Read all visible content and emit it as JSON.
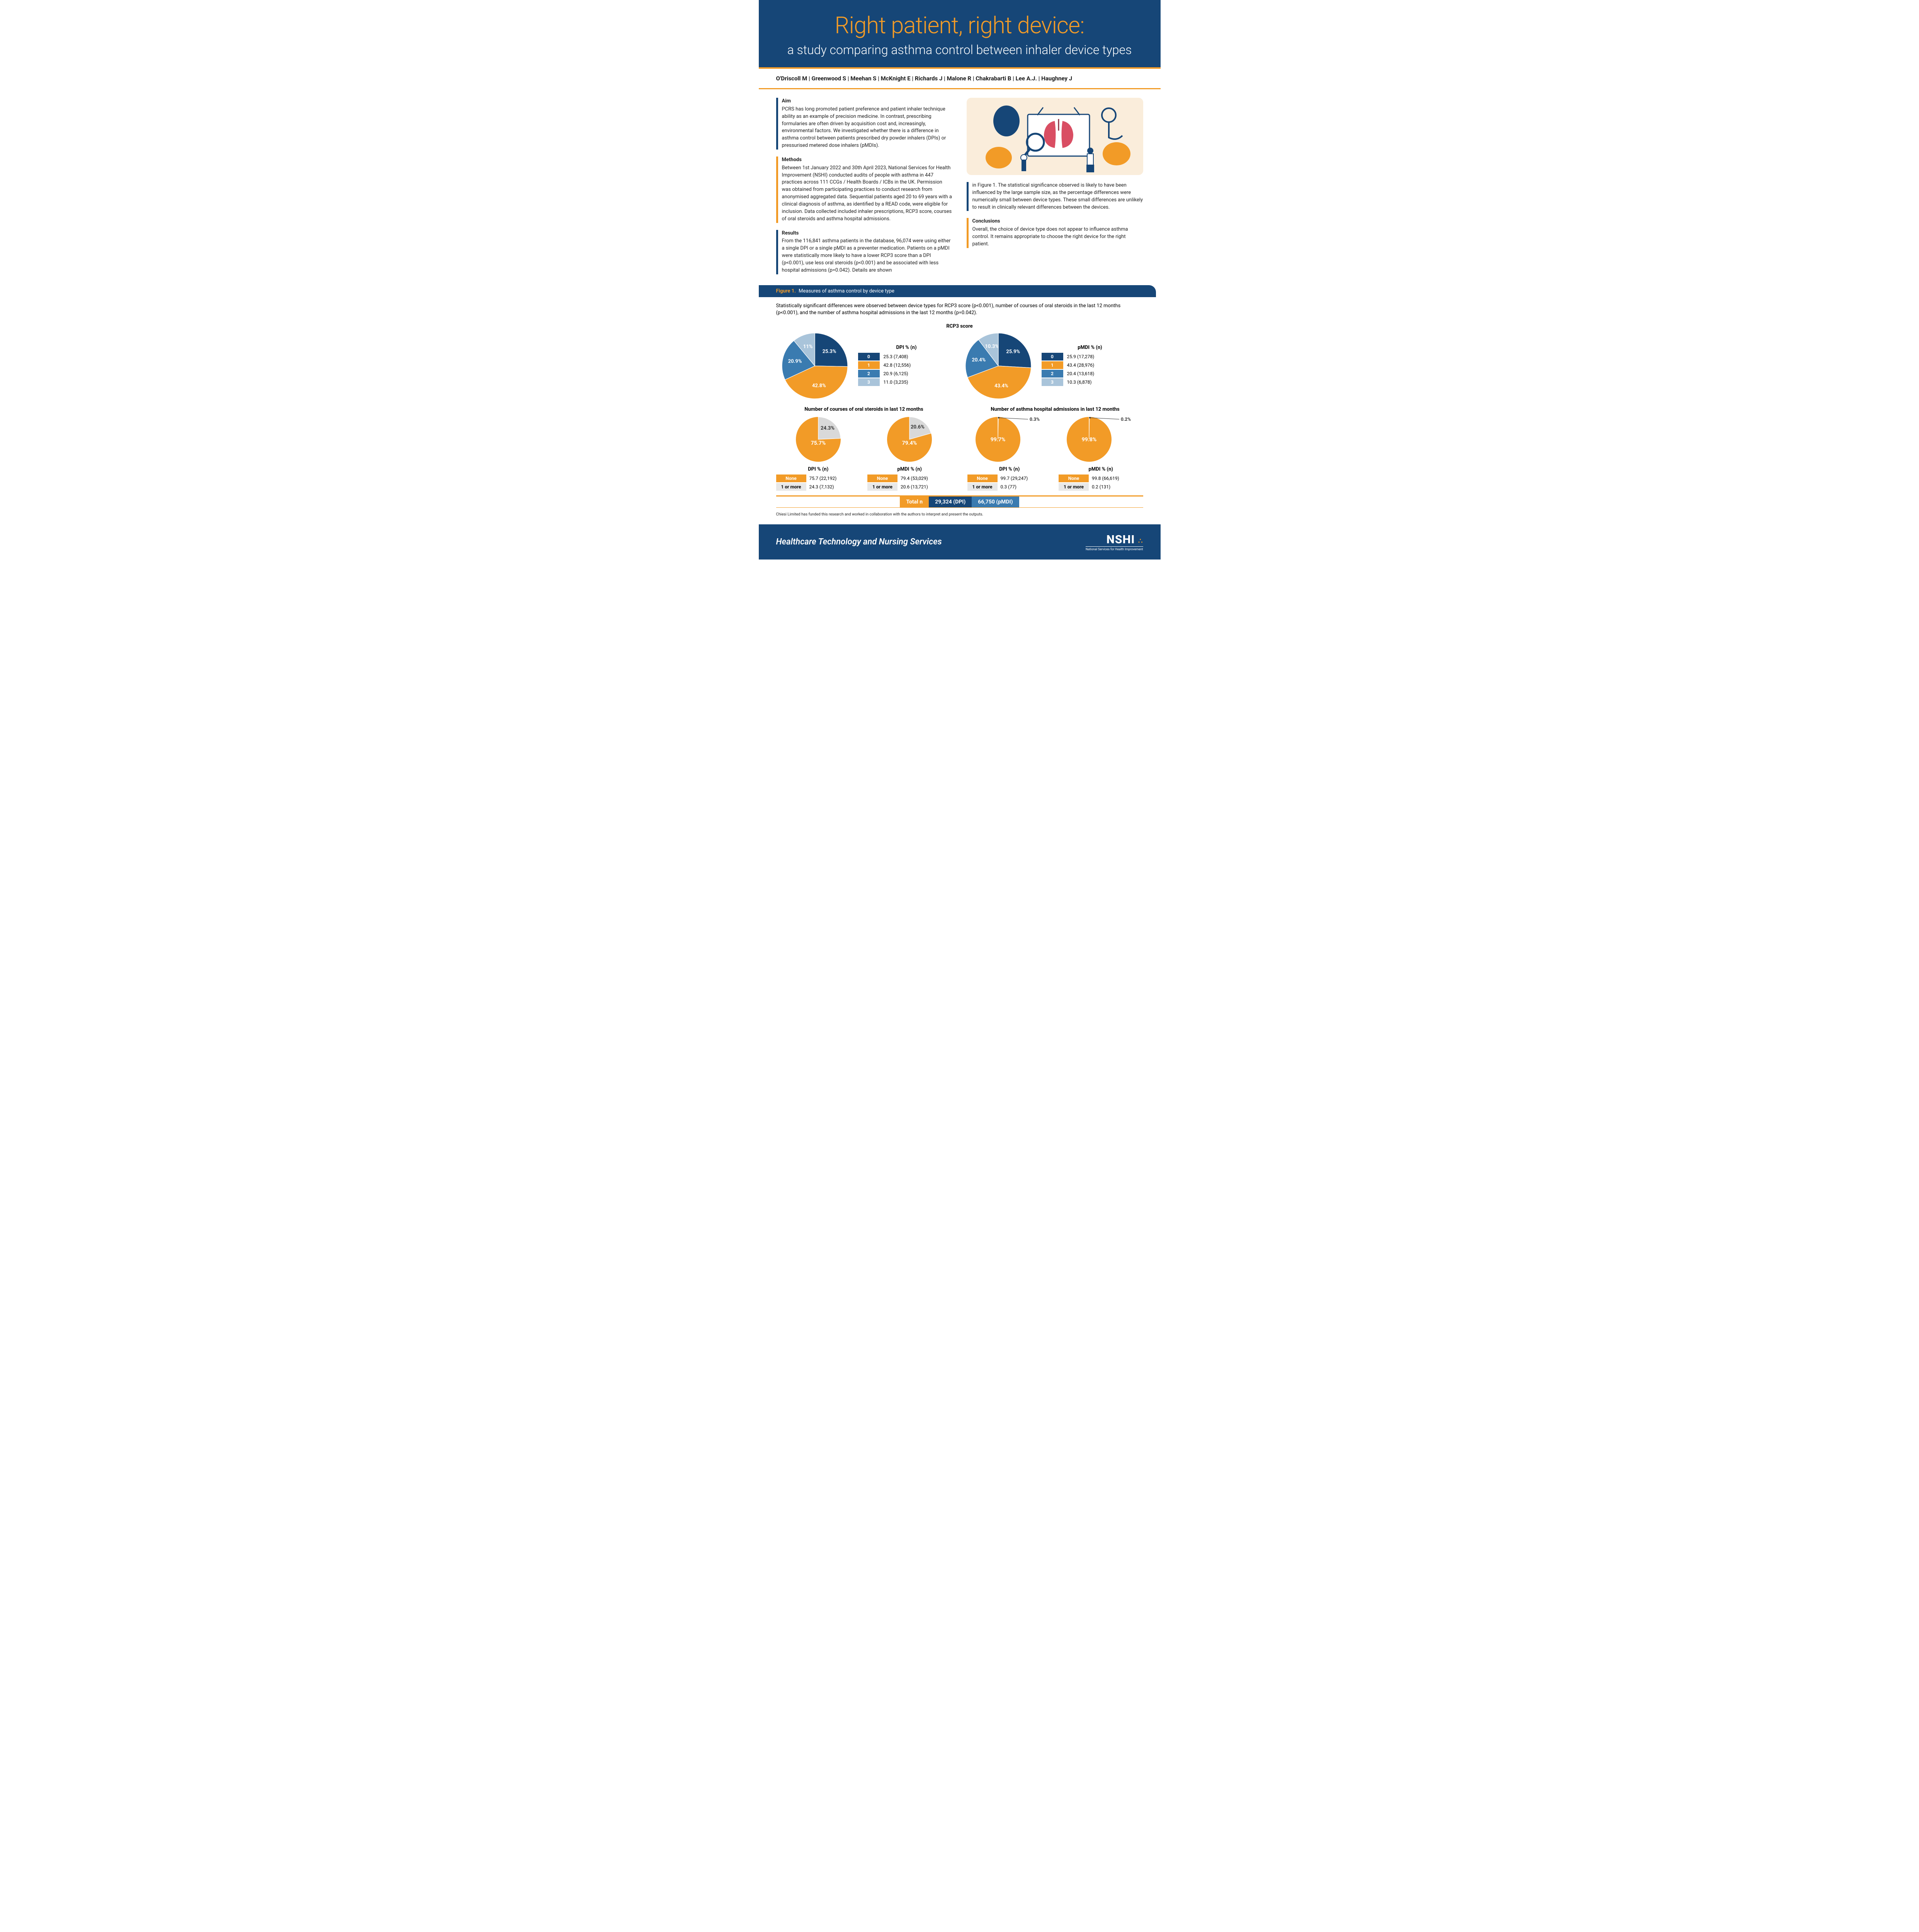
{
  "header": {
    "title": "Right patient, right device:",
    "title_color": "#f29b27",
    "subtitle": "a study comparing asthma control between inhaler device types",
    "bg": "#164677"
  },
  "authors": "O'Driscoll M | Greenwood S | Meehan S | McKnight E | Richards J | Malone R | Chakrabarti B | Lee A.J. | Haughney J",
  "sections": {
    "aim_h": "Aim",
    "aim": "PCRS has long promoted patient preference and patient inhaler technique ability as an example of precision medicine. In contrast, prescribing formularies are often driven by acquisition cost and, increasingly, environmental factors. We investigated whether there is a difference in asthma control between patients prescribed dry powder inhalers (DPIs) or pressurised metered dose inhalers (pMDIs).",
    "methods_h": "Methods",
    "methods": "Between 1st January 2022 and 30th April 2023, National Services for Health Improvement (NSHI) conducted audits of people with asthma in 447 practices across 111 CCGs / Health Boards / ICBs in the UK. Permission was obtained from participating practices to conduct research from anonymised aggregated data. Sequential patients aged 20 to 69 years with a clinical diagnosis of asthma, as identified by a READ code, were eligible for inclusion. Data collected included inhaler prescriptions, RCP3 score, courses of oral steroids and asthma hospital admissions.",
    "results_h": "Results",
    "results": "From the 116,841 asthma patients in the database, 96,074 were using either a single DPI or a single pMDI as a preventer medication. Patients on a pMDI were statistically more likely to have a lower RCP3 score than a DPI (p<0.001), use less oral steroids (p<0.001) and be associated with less hospital admissions (p=0.042). Details are shown",
    "results2": "in Figure 1. The statistical significance observed is likely to have been influenced by the large sample size, as the percentage differences were numerically small between device types. These small differences are unlikely to result in clinically relevant differences between the devices.",
    "concl_h": "Conclusions",
    "concl": "Overall, the choice of device type does not appear to influence asthma control. It remains appropriate to choose the right device for the right patient."
  },
  "figure": {
    "label": "Figure 1.",
    "title": "Measures of asthma control by device type",
    "caption": "Statistically significant differences were observed between device types for RCP3 score (p<0.001), number of courses of oral steroids in the last 12 months (p<0.001), and the number of asthma hospital admissions in the last 12 months (p=0.042).",
    "rcp3_title": "RCP3 score",
    "colors": {
      "c0": "#164677",
      "c1": "#f29b27",
      "c2": "#3a7bb0",
      "c3": "#a9c4da",
      "orange": "#f29b27",
      "grey": "#d9d9d9"
    },
    "dpi_h": "DPI % (n)",
    "pmdi_h": "pMDI % (n)",
    "rcp3_dpi": {
      "slices": [
        25.3,
        42.8,
        20.9,
        11.0
      ],
      "labels": [
        "25.3%",
        "42.8%",
        "20.9%",
        "11%"
      ],
      "rows": [
        {
          "k": "0",
          "v": "25.3 (7,408)"
        },
        {
          "k": "1",
          "v": "42.8 (12,556)"
        },
        {
          "k": "2",
          "v": "20.9 (6,125)"
        },
        {
          "k": "3",
          "v": "11.0 (3,235)"
        }
      ]
    },
    "rcp3_pmdi": {
      "slices": [
        25.9,
        43.4,
        20.4,
        10.3
      ],
      "labels": [
        "25.9%",
        "43.4%",
        "20.4%",
        "10.3%"
      ],
      "rows": [
        {
          "k": "0",
          "v": "25.9 (17,278)"
        },
        {
          "k": "1",
          "v": "43.4 (28,976)"
        },
        {
          "k": "2",
          "v": "20.4 (13,618)"
        },
        {
          "k": "3",
          "v": "10.3 (6,878)"
        }
      ]
    },
    "steroids_title": "Number of courses of oral steroids in last 12 months",
    "admissions_title": "Number of asthma hospital admissions in last 12 months",
    "steroids_dpi": {
      "none": 75.7,
      "one": 24.3,
      "rows": [
        {
          "k": "None",
          "v": "75.7 (22,192)"
        },
        {
          "k": "1 or more",
          "v": "24.3 (7,132)"
        }
      ],
      "labels": [
        "24.3%",
        "75.7%"
      ]
    },
    "steroids_pmdi": {
      "none": 79.4,
      "one": 20.6,
      "rows": [
        {
          "k": "None",
          "v": "79.4 (53,029)"
        },
        {
          "k": "1 or more",
          "v": "20.6 (13,721)"
        }
      ],
      "labels": [
        "20.6%",
        "79.4%"
      ]
    },
    "adm_dpi": {
      "none": 99.7,
      "one": 0.3,
      "rows": [
        {
          "k": "None",
          "v": "99.7 (29,247)"
        },
        {
          "k": "1 or more",
          "v": "0.3 (77)"
        }
      ],
      "labels": [
        "0.3%",
        "99.7%"
      ]
    },
    "adm_pmdi": {
      "none": 99.8,
      "one": 0.2,
      "rows": [
        {
          "k": "None",
          "v": "99.8 (66,619)"
        },
        {
          "k": "1 or more",
          "v": "0.2 (131)"
        }
      ],
      "labels": [
        "0.2%",
        "99.8%"
      ]
    },
    "total_label": "Total n",
    "total_dpi": "29,324 (DPI)",
    "total_pmdi": "66,750 (pMDI)"
  },
  "funding": "Chiesi Limited has funded this research and worked in collaboration with the authors to interpret and present the outputs.",
  "footer": {
    "tagline": "Healthcare Technology and Nursing Services",
    "logo": "NSHI",
    "logo_sub": "National Services for Health Improvement"
  }
}
